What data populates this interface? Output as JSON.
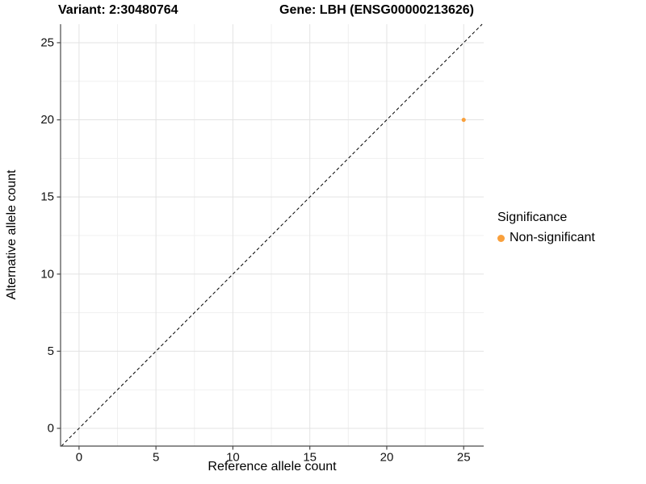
{
  "header": {
    "variant_title": "Variant: 2:30480764",
    "gene_title": "Gene: LBH (ENSG00000213626)"
  },
  "colors": {
    "point": "#F9A03C",
    "grid_major": "#E3E3E3",
    "grid_minor": "#F0F0F0",
    "axis": "#4a4a4a",
    "tick_text": "#111111",
    "identity_line": "#000000",
    "background": "#FFFFFF"
  },
  "chart_data": {
    "type": "scatter",
    "titles": [
      "Variant: 2:30480764",
      "Gene: LBH (ENSG00000213626)"
    ],
    "xlabel": "Reference allele count",
    "ylabel": "Alternative allele count",
    "xlim": [
      -1.2,
      26.3
    ],
    "ylim": [
      -1.15,
      26.2
    ],
    "xticks": [
      0,
      5,
      10,
      15,
      20,
      25
    ],
    "yticks": [
      0,
      5,
      10,
      15,
      20,
      25
    ],
    "x_minor_ticks": [
      2.5,
      7.5,
      12.5,
      17.5,
      22.5
    ],
    "y_minor_ticks": [
      2.5,
      7.5,
      12.5,
      17.5,
      22.5
    ],
    "grid": true,
    "identity_line": {
      "style": "dashed",
      "equation": "y = x",
      "color": "#000000"
    },
    "series": [
      {
        "name": "Non-significant",
        "color": "#F9A03C",
        "points": [
          {
            "x": 25,
            "y": 20
          }
        ]
      }
    ],
    "legend": {
      "title": "Significance",
      "position": "right",
      "items": [
        {
          "label": "Non-significant",
          "color": "#F9A03C"
        }
      ]
    }
  }
}
